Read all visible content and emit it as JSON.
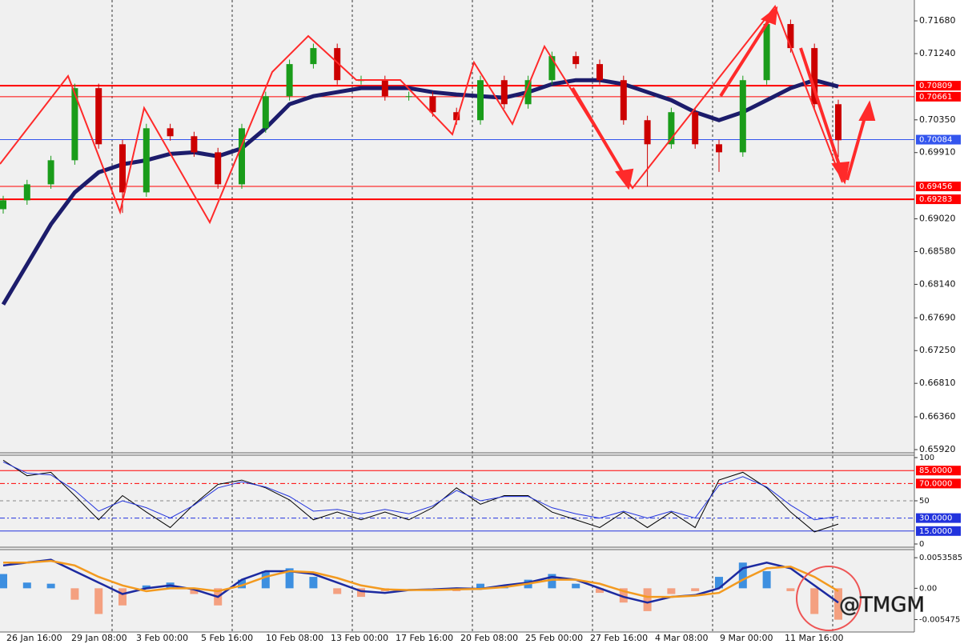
{
  "chart_data": [
    {
      "type": "candlestick",
      "open": [
        0.6915,
        0.69269,
        0.69484,
        0.69807,
        0.70776,
        0.70022,
        0.69376,
        0.70237,
        0.7013,
        0.69914,
        0.69484,
        0.70237,
        0.70668,
        0.71099,
        0.71314,
        0.70883,
        0.70883,
        0.70668,
        0.70668,
        0.70453,
        0.70345,
        0.70883,
        0.7056,
        0.70883,
        0.71206,
        0.71099,
        0.70883,
        0.70345,
        0.70022,
        0.70453,
        0.70022,
        0.69914,
        0.70883,
        0.71637,
        0.71314,
        0.7056
      ],
      "high": [
        0.69329,
        0.69544,
        0.69867,
        0.70836,
        0.70836,
        0.70082,
        0.70297,
        0.70297,
        0.7019,
        0.69974,
        0.70297,
        0.70728,
        0.71159,
        0.71374,
        0.71374,
        0.70943,
        0.70943,
        0.70728,
        0.70728,
        0.70513,
        0.70943,
        0.70943,
        0.70943,
        0.71266,
        0.71266,
        0.71159,
        0.70943,
        0.70405,
        0.70513,
        0.70513,
        0.70082,
        0.70943,
        0.71697,
        0.71697,
        0.71374,
        0.7062
      ],
      "low": [
        0.6909,
        0.69209,
        0.69424,
        0.69747,
        0.69962,
        0.691,
        0.69316,
        0.7007,
        0.69854,
        0.69424,
        0.69424,
        0.70177,
        0.70608,
        0.71039,
        0.70823,
        0.70823,
        0.70608,
        0.70608,
        0.70393,
        0.70285,
        0.70285,
        0.705,
        0.705,
        0.70823,
        0.71039,
        0.70823,
        0.70285,
        0.6945,
        0.69962,
        0.69962,
        0.6965,
        0.69854,
        0.70823,
        0.71254,
        0.705,
        0.6985
      ],
      "close": [
        0.69269,
        0.69484,
        0.69807,
        0.70776,
        0.70022,
        0.69376,
        0.70237,
        0.7013,
        0.69914,
        0.69484,
        0.70237,
        0.70668,
        0.71099,
        0.71314,
        0.70883,
        0.70883,
        0.70668,
        0.70668,
        0.70453,
        0.70345,
        0.70883,
        0.7056,
        0.70883,
        0.71206,
        0.71099,
        0.70883,
        0.70345,
        0.70022,
        0.70453,
        0.70022,
        0.69914,
        0.70883,
        0.71637,
        0.71314,
        0.7056,
        0.70076
      ],
      "up_color": "#1a9c1a",
      "down_color": "#cc0000",
      "series": [
        {
          "color": "#1c1c6b",
          "values": [
            0.67869,
            0.68407,
            0.68946,
            0.69376,
            0.69645,
            0.69753,
            0.69807,
            0.69893,
            0.69914,
            0.69861,
            0.69968,
            0.70237,
            0.7056,
            0.70668,
            0.70722,
            0.70776,
            0.70776,
            0.70776,
            0.70722,
            0.7069,
            0.70668,
            0.70647,
            0.70722,
            0.7083,
            0.70883,
            0.70883,
            0.7083,
            0.70722,
            0.70614,
            0.70453,
            0.70345,
            0.70453,
            0.70614,
            0.70776,
            0.70883,
            0.70797
          ]
        }
      ],
      "ylim": [
        0.65877,
        0.7196
      ],
      "yticks": [
        {
          "value": 0.7168,
          "label": "0.71680"
        },
        {
          "value": 0.7124,
          "label": "0.71240"
        },
        {
          "value": 0.7035,
          "label": "0.70350"
        },
        {
          "value": 0.6991,
          "label": "0.69910"
        },
        {
          "value": 0.6902,
          "label": "0.69020"
        },
        {
          "value": 0.6858,
          "label": "0.68580"
        },
        {
          "value": 0.6814,
          "label": "0.68140"
        },
        {
          "value": 0.6769,
          "label": "0.67690"
        },
        {
          "value": 0.6725,
          "label": "0.67250"
        },
        {
          "value": 0.6681,
          "label": "0.66810"
        },
        {
          "value": 0.6636,
          "label": "0.66360"
        },
        {
          "value": 0.6592,
          "label": "0.65920"
        }
      ],
      "levels": [
        {
          "value": 0.70809,
          "color": "#ff0000",
          "width": 2
        },
        {
          "value": 0.70661,
          "color": "#ff0000",
          "width": 1
        },
        {
          "value": 0.70084,
          "color": "#3355ee",
          "width": 1
        },
        {
          "value": 0.69456,
          "color": "#ff0000",
          "width": 1
        },
        {
          "value": 0.69283,
          "color": "#ff0000",
          "width": 2
        }
      ],
      "xtick_labels": [
        "26 Jan 16:00",
        "29 Jan 08:00",
        "3 Feb 00:00",
        "5 Feb 16:00",
        "10 Feb 08:00",
        "13 Feb 00:00",
        "17 Feb 16:00",
        "20 Feb 08:00",
        "25 Feb 00:00",
        "27 Feb 16:00",
        "4 Mar 08:00",
        "9 Mar 00:00",
        "11 Mar 16:00"
      ],
      "watermark": "@TMGM"
    },
    {
      "type": "oscillator",
      "series": [
        {
          "color": "#000000",
          "values": [
            97,
            79,
            83,
            56,
            28,
            56,
            37,
            19,
            46,
            69,
            74,
            65,
            51,
            28,
            37,
            28,
            37,
            28,
            42,
            65,
            46,
            56,
            56,
            37,
            28,
            19,
            37,
            19,
            37,
            19,
            74,
            83,
            65,
            37,
            14,
            23
          ]
        },
        {
          "color": "#2233dd",
          "values": [
            95,
            82,
            80,
            62,
            38,
            50,
            42,
            30,
            45,
            65,
            72,
            66,
            55,
            38,
            40,
            35,
            40,
            35,
            44,
            62,
            50,
            55,
            55,
            42,
            35,
            30,
            38,
            30,
            38,
            30,
            68,
            78,
            66,
            45,
            28,
            32
          ]
        }
      ],
      "ylim": [
        0,
        100
      ],
      "yticks": [
        100,
        50,
        0
      ],
      "levels": [
        {
          "value": 85,
          "label": "85.0000",
          "color": "#ff0000",
          "dash": "none"
        },
        {
          "value": 70,
          "label": "70.0000",
          "color": "#ff0000",
          "dash": "6,3,2,3"
        },
        {
          "value": 30,
          "label": "30.0000",
          "color": "#2233dd",
          "dash": "6,3,2,3"
        },
        {
          "value": 15,
          "label": "15.0000",
          "color": "#2233dd",
          "dash": "none"
        }
      ]
    },
    {
      "type": "macd",
      "values": [
        0.0025,
        0.001,
        0.0008,
        -0.002,
        -0.0045,
        -0.003,
        0.0005,
        0.001,
        -0.001,
        -0.003,
        0.0015,
        0.003,
        0.0035,
        0.002,
        -0.001,
        -0.0015,
        -0.0005,
        0,
        0,
        -0.0005,
        0.0008,
        0.0003,
        0.0015,
        0.0025,
        0.0008,
        -0.0008,
        -0.0025,
        -0.004,
        -0.001,
        -0.0005,
        0.002,
        0.0045,
        0.003,
        -0.0005,
        -0.0045,
        -0.0055
      ],
      "up_color": "#3d8fe0",
      "down_color": "#f4a080",
      "series": [
        {
          "color": "#1c2aa0",
          "values": [
            0.004,
            0.0045,
            0.005,
            0.003,
            0.001,
            -0.001,
            0,
            0.0005,
            -0.0002,
            -0.0015,
            0.0015,
            0.003,
            0.003,
            0.0025,
            0.001,
            -0.0005,
            -0.0008,
            -0.0003,
            -0.0002,
            0,
            -0.0001,
            0.0005,
            0.001,
            0.002,
            0.0015,
            0,
            -0.0015,
            -0.0025,
            -0.0015,
            -0.0012,
            0,
            0.0035,
            0.0045,
            0.0035,
            0.0005,
            -0.0025
          ]
        },
        {
          "color": "#f39a1f",
          "values": [
            0.0045,
            0.0045,
            0.0048,
            0.004,
            0.002,
            0.0005,
            -0.0005,
            0,
            0,
            -0.0005,
            0.0005,
            0.002,
            0.003,
            0.0028,
            0.0018,
            0.0005,
            -0.0002,
            -0.0003,
            -0.0003,
            -0.0002,
            -0.0001,
            0.0002,
            0.0008,
            0.0015,
            0.0015,
            0.0008,
            -0.0005,
            -0.0015,
            -0.0015,
            -0.0013,
            -0.0008,
            0.0015,
            0.0035,
            0.0038,
            0.002,
            -0.0005
          ]
        }
      ],
      "ylim": [
        -0.007656,
        0.006636
      ],
      "yticks": [
        0.0053585,
        {
          "value": 0,
          "label": "0.00"
        },
        -0.005475
      ]
    }
  ]
}
